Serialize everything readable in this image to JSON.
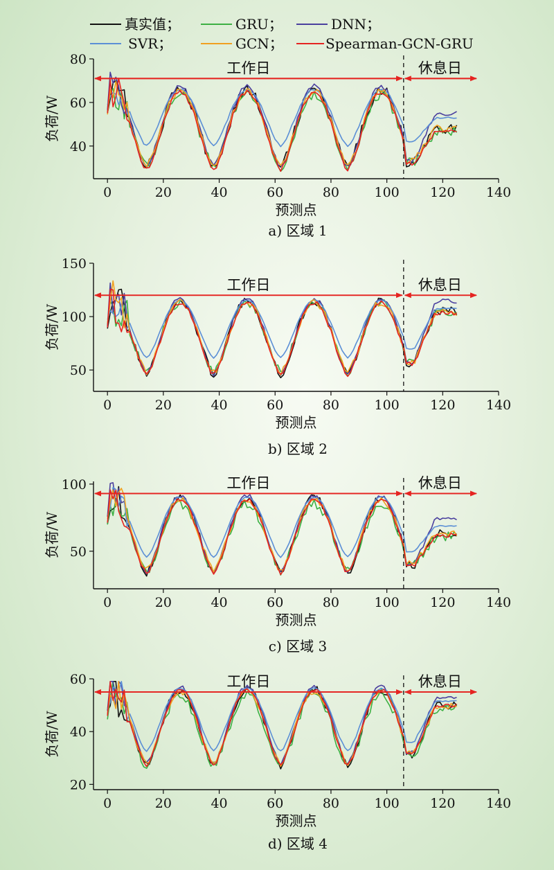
{
  "legend": [
    {
      "label": "真实值；",
      "color": "#111111"
    },
    {
      "label": "GRU；",
      "color": "#3cb043"
    },
    {
      "label": "DNN；",
      "color": "#4a3f9e"
    },
    {
      "label": "SVR；",
      "color": "#5b8fd6"
    },
    {
      "label": "GCN；",
      "color": "#f0a020"
    },
    {
      "label": "Spearman-GCN-GRU",
      "color": "#e52421"
    }
  ],
  "annotations": {
    "workday": "工作日",
    "restday": "休息日",
    "arrow_color": "#e52421"
  },
  "chart_data": [
    {
      "type": "line",
      "caption": "a) 区域 1",
      "xlabel": "预测点",
      "ylabel": "负荷/W",
      "xlim": [
        -5,
        140
      ],
      "ylim": [
        25,
        80
      ],
      "xticks": [
        0,
        20,
        40,
        60,
        80,
        100,
        120,
        140
      ],
      "yticks": [
        40,
        60,
        80
      ],
      "split_x": 106,
      "arrow_y": 71,
      "x": [
        0,
        125
      ],
      "base": {
        "lo": 30,
        "hi": 66,
        "first_day_wobble": 8,
        "weekend_lo": 30,
        "weekend_hi": 48
      },
      "series": [
        {
          "name": "真实值",
          "scale": 1.0,
          "offset": 0,
          "noise": 2.5
        },
        {
          "name": "GRU",
          "scale": 0.93,
          "offset": -1,
          "noise": 2.2
        },
        {
          "name": "DNN",
          "scale": 1.02,
          "offset": 1,
          "noise": 1.2,
          "weekend_boost": 6
        },
        {
          "name": "SVR",
          "scale": 0.72,
          "offset": 5,
          "noise": 0.4
        },
        {
          "name": "GCN",
          "scale": 0.96,
          "offset": 0,
          "noise": 1.6
        },
        {
          "name": "Spearman-GCN-GRU",
          "scale": 0.99,
          "offset": -1,
          "noise": 1.0
        }
      ]
    },
    {
      "type": "line",
      "caption": "b) 区域 2",
      "xlabel": "预测点",
      "ylabel": "负荷/W",
      "xlim": [
        -5,
        140
      ],
      "ylim": [
        30,
        150
      ],
      "xticks": [
        0,
        20,
        40,
        60,
        80,
        100,
        120,
        140
      ],
      "yticks": [
        50,
        100,
        150
      ],
      "split_x": 106,
      "arrow_y": 120,
      "x": [
        0,
        125
      ],
      "base": {
        "lo": 46,
        "hi": 115,
        "first_day_wobble": 20,
        "weekend_lo": 48,
        "weekend_hi": 105
      },
      "series": [
        {
          "name": "真实值",
          "scale": 1.0,
          "offset": 0,
          "noise": 4
        },
        {
          "name": "GRU",
          "scale": 0.95,
          "offset": 0,
          "noise": 4
        },
        {
          "name": "DNN",
          "scale": 1.02,
          "offset": 1,
          "noise": 2,
          "weekend_boost": 8
        },
        {
          "name": "SVR",
          "scale": 0.78,
          "offset": 8,
          "noise": 0.5
        },
        {
          "name": "GCN",
          "scale": 0.96,
          "offset": 0,
          "noise": 3
        },
        {
          "name": "Spearman-GCN-GRU",
          "scale": 0.98,
          "offset": -1,
          "noise": 2
        }
      ]
    },
    {
      "type": "line",
      "caption": "c) 区域 3",
      "xlabel": "预测点",
      "ylabel": "负荷/W",
      "xlim": [
        -5,
        140
      ],
      "ylim": [
        22,
        102
      ],
      "xticks": [
        0,
        20,
        40,
        60,
        80,
        100,
        120,
        140
      ],
      "yticks": [
        50,
        100
      ],
      "split_x": 106,
      "arrow_y": 93,
      "x": [
        0,
        125
      ],
      "base": {
        "lo": 34,
        "hi": 90,
        "first_day_wobble": 14,
        "weekend_lo": 35,
        "weekend_hi": 63
      },
      "series": [
        {
          "name": "真实值",
          "scale": 1.0,
          "offset": 0,
          "noise": 3
        },
        {
          "name": "GRU",
          "scale": 0.9,
          "offset": -2,
          "noise": 3.5
        },
        {
          "name": "DNN",
          "scale": 1.02,
          "offset": 1,
          "noise": 1.5,
          "weekend_boost": 10
        },
        {
          "name": "SVR",
          "scale": 0.8,
          "offset": 6,
          "noise": 0.4
        },
        {
          "name": "GCN",
          "scale": 0.95,
          "offset": 0,
          "noise": 2.5
        },
        {
          "name": "Spearman-GCN-GRU",
          "scale": 0.98,
          "offset": -1,
          "noise": 1.5
        }
      ]
    },
    {
      "type": "line",
      "caption": "d) 区域 4",
      "xlabel": "预测点",
      "ylabel": "负荷/W",
      "xlim": [
        -5,
        140
      ],
      "ylim": [
        18,
        60
      ],
      "xticks": [
        0,
        20,
        40,
        60,
        80,
        100,
        120,
        140
      ],
      "yticks": [
        20,
        40,
        60
      ],
      "split_x": 106,
      "arrow_y": 55,
      "x": [
        0,
        125
      ],
      "base": {
        "lo": 27,
        "hi": 56,
        "first_day_wobble": 8,
        "weekend_lo": 28,
        "weekend_hi": 50
      },
      "series": [
        {
          "name": "真实值",
          "scale": 1.0,
          "offset": 0,
          "noise": 1.6
        },
        {
          "name": "GRU",
          "scale": 0.95,
          "offset": -1,
          "noise": 2.0
        },
        {
          "name": "DNN",
          "scale": 1.01,
          "offset": 1,
          "noise": 0.8,
          "weekend_boost": 2
        },
        {
          "name": "SVR",
          "scale": 0.82,
          "offset": 3,
          "noise": 0.3
        },
        {
          "name": "GCN",
          "scale": 0.96,
          "offset": 0,
          "noise": 1.2
        },
        {
          "name": "Spearman-GCN-GRU",
          "scale": 0.99,
          "offset": 0,
          "noise": 0.7
        }
      ]
    }
  ]
}
